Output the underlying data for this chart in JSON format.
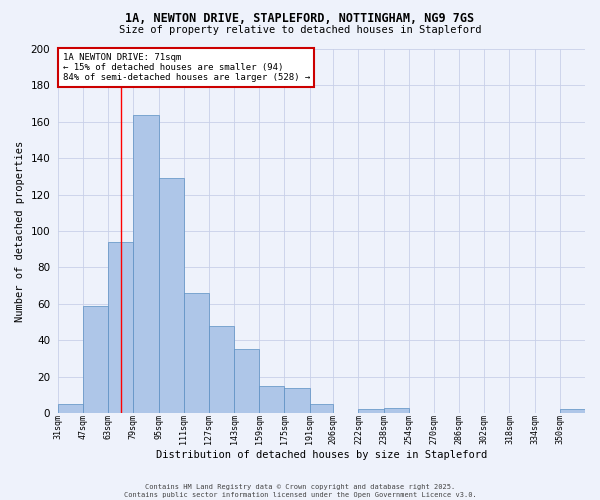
{
  "title_line1": "1A, NEWTON DRIVE, STAPLEFORD, NOTTINGHAM, NG9 7GS",
  "title_line2": "Size of property relative to detached houses in Stapleford",
  "xlabel": "Distribution of detached houses by size in Stapleford",
  "ylabel": "Number of detached properties",
  "bar_labels": [
    "31sqm",
    "47sqm",
    "63sqm",
    "79sqm",
    "95sqm",
    "111sqm",
    "127sqm",
    "143sqm",
    "159sqm",
    "175sqm",
    "191sqm",
    "206sqm",
    "222sqm",
    "238sqm",
    "254sqm",
    "270sqm",
    "286sqm",
    "302sqm",
    "318sqm",
    "334sqm",
    "350sqm"
  ],
  "bar_values": [
    5,
    59,
    94,
    164,
    129,
    66,
    48,
    35,
    15,
    14,
    5,
    0,
    2,
    3,
    0,
    0,
    0,
    0,
    0,
    0,
    2
  ],
  "bar_edges": [
    31,
    47,
    63,
    79,
    95,
    111,
    127,
    143,
    159,
    175,
    191,
    206,
    222,
    238,
    254,
    270,
    286,
    302,
    318,
    334,
    350,
    366
  ],
  "bar_color": "#aec6e8",
  "bar_edge_color": "#5a8fc2",
  "red_line_x": 71,
  "annotation_text": "1A NEWTON DRIVE: 71sqm\n← 15% of detached houses are smaller (94)\n84% of semi-detached houses are larger (528) →",
  "annotation_box_color": "#ffffff",
  "annotation_box_edge": "#cc0000",
  "footer_text": "Contains HM Land Registry data © Crown copyright and database right 2025.\nContains public sector information licensed under the Open Government Licence v3.0.",
  "ylim": [
    0,
    200
  ],
  "yticks": [
    0,
    20,
    40,
    60,
    80,
    100,
    120,
    140,
    160,
    180,
    200
  ],
  "bg_color": "#eef2fb",
  "grid_color": "#c8d0e8"
}
